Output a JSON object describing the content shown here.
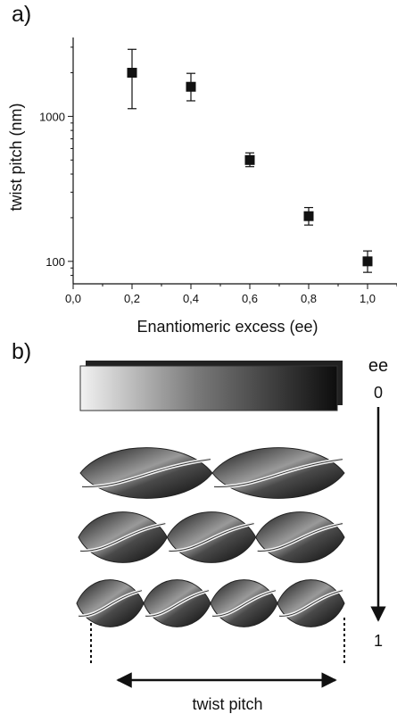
{
  "panel_a_label": "a)",
  "panel_b_label": "b)",
  "chart_data": {
    "type": "scatter",
    "xlabel": "Enantiomeric excess (ee)",
    "ylabel": "twist pitch (nm)",
    "xlim": [
      0.0,
      1.1
    ],
    "ylim": [
      70,
      3500
    ],
    "yscale": "log",
    "x_ticks": [
      "0,0",
      "0,2",
      "0,4",
      "0,6",
      "0,8",
      "1,0"
    ],
    "y_ticks": [
      "100",
      "1000"
    ],
    "marker": "square",
    "series": [
      {
        "x": [
          0.2,
          0.4,
          0.6,
          0.8,
          1.0
        ],
        "y": [
          2000,
          1600,
          500,
          205,
          100
        ],
        "err_low": [
          1130,
          1280,
          450,
          178,
          84
        ],
        "err_high": [
          2900,
          1980,
          560,
          235,
          118
        ]
      }
    ]
  },
  "schematic": {
    "ee_label": "ee",
    "ee_start": "0",
    "ee_end": "1",
    "pitch_label": "twist pitch"
  }
}
